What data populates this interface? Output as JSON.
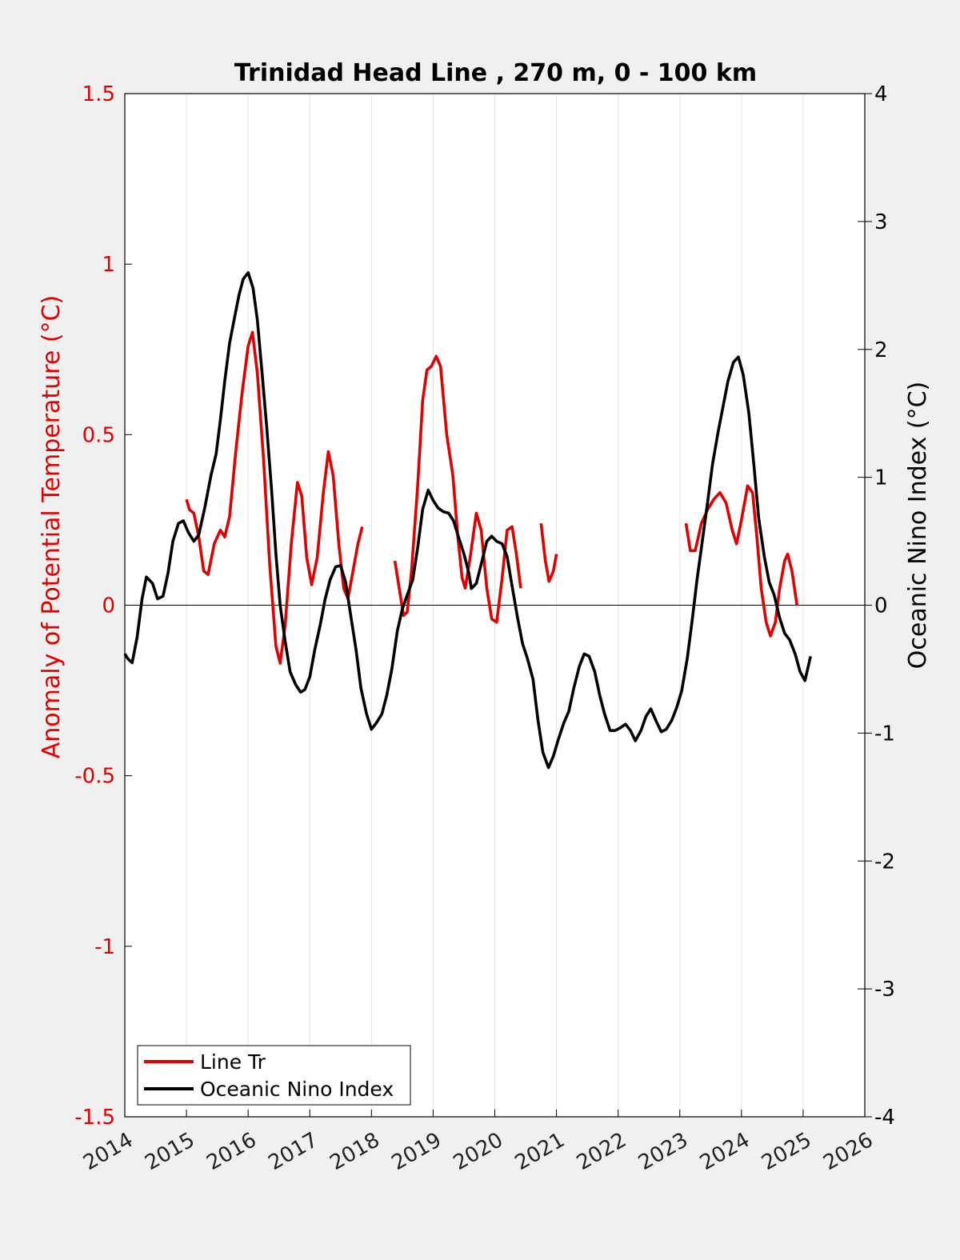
{
  "chart_data": {
    "type": "line",
    "title": "Trinidad Head Line , 270 m, 0 - 100 km",
    "ylabel_left": "Anomaly of Potential Temperature (°C)",
    "ylabel_right": "Oceanic Nino Index (°C)",
    "xlabel": "",
    "xlim": [
      2014,
      2026
    ],
    "ylim_left": [
      -1.5,
      1.5
    ],
    "ylim_right": [
      -4,
      4
    ],
    "x_ticks": [
      "2014",
      "2015",
      "2016",
      "2017",
      "2018",
      "2019",
      "2020",
      "2021",
      "2022",
      "2023",
      "2024",
      "2025",
      "2026"
    ],
    "y_ticks_left": [
      "1.5",
      "1",
      "0.5",
      "0",
      "-0.5",
      "-1",
      "-1.5"
    ],
    "y_ticks_right": [
      "4",
      "3",
      "2",
      "1",
      "0",
      "-1",
      "-2",
      "-3",
      "-4"
    ],
    "grid": "vertical",
    "legend_position": "bottom-left",
    "colors": {
      "line_tr": "#e00000",
      "oni": "#000000",
      "left_axis": "#e00000"
    },
    "series": [
      {
        "name": "Line Tr",
        "axis": "left",
        "color": "#e00000",
        "segments": [
          [
            [
              2015.0,
              0.31
            ],
            [
              2015.05,
              0.28
            ],
            [
              2015.12,
              0.27
            ],
            [
              2015.2,
              0.2
            ],
            [
              2015.28,
              0.1
            ],
            [
              2015.35,
              0.09
            ],
            [
              2015.45,
              0.18
            ],
            [
              2015.55,
              0.22
            ],
            [
              2015.62,
              0.2
            ],
            [
              2015.7,
              0.26
            ],
            [
              2015.8,
              0.45
            ],
            [
              2015.9,
              0.62
            ],
            [
              2016.0,
              0.76
            ],
            [
              2016.07,
              0.8
            ],
            [
              2016.15,
              0.68
            ],
            [
              2016.25,
              0.43
            ],
            [
              2016.35,
              0.12
            ],
            [
              2016.45,
              -0.12
            ],
            [
              2016.52,
              -0.17
            ],
            [
              2016.6,
              -0.06
            ],
            [
              2016.7,
              0.18
            ],
            [
              2016.8,
              0.36
            ],
            [
              2016.87,
              0.32
            ],
            [
              2016.95,
              0.14
            ],
            [
              2017.03,
              0.06
            ],
            [
              2017.12,
              0.14
            ],
            [
              2017.22,
              0.33
            ],
            [
              2017.3,
              0.45
            ],
            [
              2017.38,
              0.38
            ],
            [
              2017.47,
              0.18
            ],
            [
              2017.55,
              0.05
            ],
            [
              2017.62,
              0.02
            ],
            [
              2017.7,
              0.1
            ],
            [
              2017.78,
              0.18
            ],
            [
              2017.85,
              0.23
            ]
          ],
          [
            [
              2018.38,
              0.13
            ],
            [
              2018.45,
              0.05
            ],
            [
              2018.52,
              -0.03
            ],
            [
              2018.58,
              -0.02
            ],
            [
              2018.65,
              0.1
            ],
            [
              2018.75,
              0.35
            ],
            [
              2018.83,
              0.6
            ],
            [
              2018.9,
              0.69
            ],
            [
              2018.97,
              0.7
            ],
            [
              2019.05,
              0.73
            ],
            [
              2019.12,
              0.7
            ],
            [
              2019.22,
              0.5
            ],
            [
              2019.32,
              0.38
            ],
            [
              2019.4,
              0.2
            ],
            [
              2019.47,
              0.08
            ],
            [
              2019.52,
              0.05
            ],
            [
              2019.6,
              0.14
            ],
            [
              2019.7,
              0.27
            ],
            [
              2019.78,
              0.22
            ],
            [
              2019.87,
              0.05
            ],
            [
              2019.95,
              -0.04
            ],
            [
              2020.03,
              -0.05
            ],
            [
              2020.12,
              0.08
            ],
            [
              2020.2,
              0.22
            ],
            [
              2020.28,
              0.23
            ],
            [
              2020.35,
              0.15
            ],
            [
              2020.42,
              0.05
            ]
          ],
          [
            [
              2020.75,
              0.24
            ],
            [
              2020.82,
              0.13
            ],
            [
              2020.88,
              0.07
            ],
            [
              2020.95,
              0.1
            ],
            [
              2021.0,
              0.15
            ]
          ],
          [
            [
              2023.1,
              0.24
            ],
            [
              2023.17,
              0.16
            ],
            [
              2023.25,
              0.16
            ],
            [
              2023.35,
              0.24
            ],
            [
              2023.45,
              0.28
            ],
            [
              2023.55,
              0.31
            ],
            [
              2023.65,
              0.33
            ],
            [
              2023.75,
              0.3
            ],
            [
              2023.85,
              0.22
            ],
            [
              2023.92,
              0.18
            ],
            [
              2024.0,
              0.25
            ],
            [
              2024.1,
              0.35
            ],
            [
              2024.18,
              0.33
            ],
            [
              2024.25,
              0.2
            ],
            [
              2024.32,
              0.05
            ],
            [
              2024.4,
              -0.05
            ],
            [
              2024.47,
              -0.09
            ],
            [
              2024.55,
              -0.05
            ],
            [
              2024.62,
              0.05
            ],
            [
              2024.7,
              0.13
            ],
            [
              2024.75,
              0.15
            ],
            [
              2024.82,
              0.1
            ],
            [
              2024.9,
              0.0
            ]
          ]
        ]
      },
      {
        "name": "Oceanic Nino Index",
        "axis": "right",
        "color": "#000000",
        "segments": [
          [
            [
              2014.0,
              -0.38
            ],
            [
              2014.05,
              -0.42
            ],
            [
              2014.12,
              -0.45
            ],
            [
              2014.2,
              -0.25
            ],
            [
              2014.28,
              0.05
            ],
            [
              2014.35,
              0.22
            ],
            [
              2014.45,
              0.17
            ],
            [
              2014.53,
              0.05
            ],
            [
              2014.62,
              0.07
            ],
            [
              2014.7,
              0.25
            ],
            [
              2014.78,
              0.5
            ],
            [
              2014.87,
              0.64
            ],
            [
              2014.95,
              0.66
            ],
            [
              2015.03,
              0.57
            ],
            [
              2015.12,
              0.5
            ],
            [
              2015.2,
              0.55
            ],
            [
              2015.3,
              0.77
            ],
            [
              2015.4,
              1.02
            ],
            [
              2015.48,
              1.18
            ],
            [
              2015.55,
              1.45
            ],
            [
              2015.62,
              1.75
            ],
            [
              2015.7,
              2.05
            ],
            [
              2015.78,
              2.25
            ],
            [
              2015.85,
              2.42
            ],
            [
              2015.92,
              2.55
            ],
            [
              2016.0,
              2.6
            ],
            [
              2016.08,
              2.48
            ],
            [
              2016.15,
              2.23
            ],
            [
              2016.22,
              1.85
            ],
            [
              2016.3,
              1.4
            ],
            [
              2016.38,
              0.9
            ],
            [
              2016.45,
              0.4
            ],
            [
              2016.52,
              0.0
            ],
            [
              2016.6,
              -0.28
            ],
            [
              2016.68,
              -0.52
            ],
            [
              2016.77,
              -0.62
            ],
            [
              2016.85,
              -0.68
            ],
            [
              2016.92,
              -0.66
            ],
            [
              2017.0,
              -0.56
            ],
            [
              2017.08,
              -0.35
            ],
            [
              2017.17,
              -0.15
            ],
            [
              2017.25,
              0.05
            ],
            [
              2017.33,
              0.2
            ],
            [
              2017.42,
              0.3
            ],
            [
              2017.5,
              0.31
            ],
            [
              2017.58,
              0.18
            ],
            [
              2017.67,
              -0.1
            ],
            [
              2017.75,
              -0.35
            ],
            [
              2017.83,
              -0.65
            ],
            [
              2017.92,
              -0.85
            ],
            [
              2018.0,
              -0.97
            ],
            [
              2018.08,
              -0.92
            ],
            [
              2018.17,
              -0.85
            ],
            [
              2018.25,
              -0.7
            ],
            [
              2018.33,
              -0.5
            ],
            [
              2018.42,
              -0.2
            ],
            [
              2018.5,
              -0.03
            ],
            [
              2018.58,
              0.08
            ],
            [
              2018.67,
              0.2
            ],
            [
              2018.75,
              0.45
            ],
            [
              2018.83,
              0.75
            ],
            [
              2018.92,
              0.9
            ],
            [
              2019.0,
              0.82
            ],
            [
              2019.08,
              0.76
            ],
            [
              2019.17,
              0.73
            ],
            [
              2019.25,
              0.72
            ],
            [
              2019.33,
              0.66
            ],
            [
              2019.42,
              0.52
            ],
            [
              2019.5,
              0.4
            ],
            [
              2019.58,
              0.25
            ],
            [
              2019.62,
              0.13
            ],
            [
              2019.7,
              0.17
            ],
            [
              2019.78,
              0.32
            ],
            [
              2019.87,
              0.5
            ],
            [
              2019.95,
              0.54
            ],
            [
              2020.03,
              0.5
            ],
            [
              2020.12,
              0.48
            ],
            [
              2020.2,
              0.38
            ],
            [
              2020.28,
              0.15
            ],
            [
              2020.37,
              -0.1
            ],
            [
              2020.45,
              -0.3
            ],
            [
              2020.53,
              -0.42
            ],
            [
              2020.62,
              -0.58
            ],
            [
              2020.7,
              -0.9
            ],
            [
              2020.78,
              -1.15
            ],
            [
              2020.87,
              -1.27
            ],
            [
              2020.95,
              -1.18
            ],
            [
              2021.03,
              -1.05
            ],
            [
              2021.12,
              -0.92
            ],
            [
              2021.2,
              -0.83
            ],
            [
              2021.28,
              -0.65
            ],
            [
              2021.37,
              -0.48
            ],
            [
              2021.45,
              -0.38
            ],
            [
              2021.53,
              -0.4
            ],
            [
              2021.62,
              -0.52
            ],
            [
              2021.7,
              -0.7
            ],
            [
              2021.78,
              -0.85
            ],
            [
              2021.87,
              -0.98
            ],
            [
              2021.95,
              -0.98
            ],
            [
              2022.03,
              -0.96
            ],
            [
              2022.12,
              -0.93
            ],
            [
              2022.2,
              -0.98
            ],
            [
              2022.28,
              -1.06
            ],
            [
              2022.37,
              -0.98
            ],
            [
              2022.45,
              -0.87
            ],
            [
              2022.53,
              -0.81
            ],
            [
              2022.62,
              -0.91
            ],
            [
              2022.7,
              -0.99
            ],
            [
              2022.78,
              -0.97
            ],
            [
              2022.87,
              -0.9
            ],
            [
              2022.95,
              -0.8
            ],
            [
              2023.03,
              -0.67
            ],
            [
              2023.12,
              -0.42
            ],
            [
              2023.2,
              -0.12
            ],
            [
              2023.28,
              0.2
            ],
            [
              2023.37,
              0.52
            ],
            [
              2023.45,
              0.8
            ],
            [
              2023.53,
              1.1
            ],
            [
              2023.62,
              1.35
            ],
            [
              2023.7,
              1.55
            ],
            [
              2023.78,
              1.75
            ],
            [
              2023.87,
              1.9
            ],
            [
              2023.95,
              1.94
            ],
            [
              2024.03,
              1.8
            ],
            [
              2024.12,
              1.5
            ],
            [
              2024.2,
              1.1
            ],
            [
              2024.28,
              0.68
            ],
            [
              2024.37,
              0.38
            ],
            [
              2024.45,
              0.18
            ],
            [
              2024.53,
              0.08
            ],
            [
              2024.62,
              -0.1
            ],
            [
              2024.7,
              -0.22
            ],
            [
              2024.78,
              -0.27
            ],
            [
              2024.87,
              -0.38
            ],
            [
              2024.95,
              -0.52
            ],
            [
              2025.03,
              -0.59
            ],
            [
              2025.12,
              -0.4
            ]
          ]
        ]
      }
    ]
  }
}
